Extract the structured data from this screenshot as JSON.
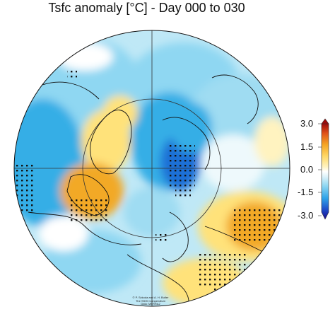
{
  "title": "Tsfc anomaly [°C] - Day 000 to 030",
  "colorbar": {
    "ticks": [
      "3.0",
      "1.5",
      "0.0",
      "-1.5",
      "-3.0"
    ],
    "range": [
      -3.0,
      3.0
    ],
    "colors": [
      "#1a0a8c",
      "#1f4cc8",
      "#2fa3e8",
      "#8fd7f2",
      "#dff3fa",
      "#ffffff",
      "#fff3c0",
      "#ffd866",
      "#f5a623",
      "#e0531a",
      "#9e0b0b"
    ]
  },
  "map": {
    "projection": "north polar stereographic",
    "significance_stippling": "dots",
    "colors": {
      "cold_strong": "#1f6fd6",
      "cold": "#35aee6",
      "cool": "#9fdcf2",
      "neutral": "#ffffff",
      "warm": "#ffe27a",
      "warm_strong": "#f2a928",
      "coast": "#111111"
    }
  },
  "credit": [
    "© P. Szkoda and A. H. Butler",
    "The SSW Compendium",
    "Data: MERRA2"
  ]
}
